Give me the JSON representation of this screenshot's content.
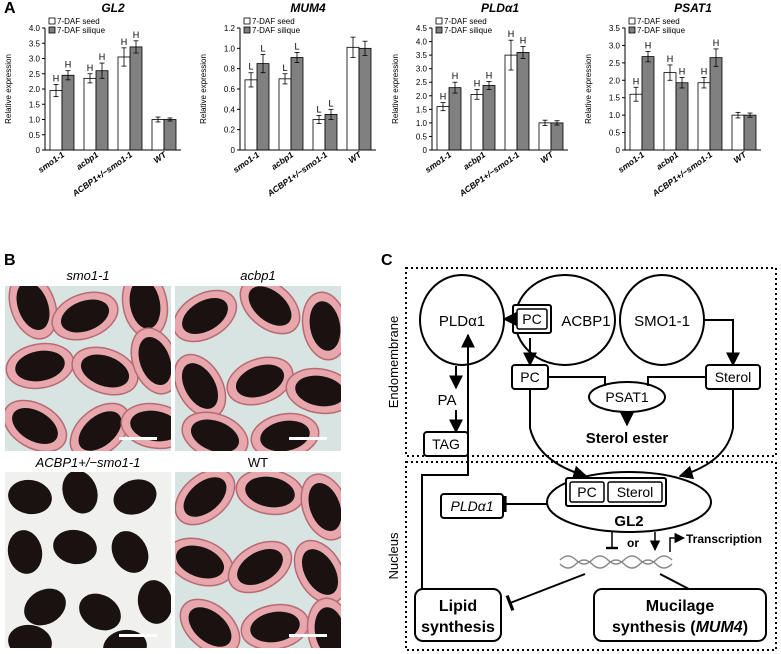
{
  "panels": {
    "a": "A",
    "b": "B",
    "c": "C"
  },
  "legend": {
    "seed": "7-DAF seed",
    "silique": "7-DAF silique"
  },
  "colors": {
    "seed": "#ffffff",
    "silique": "#808080",
    "seed_bg": "#e7a7ad",
    "seed_body": "#1a1210",
    "plate_bg": "#d8e4e2"
  },
  "chart_data": [
    {
      "type": "bar",
      "title": "GL2",
      "ylabel": "Relative expression",
      "categories": [
        "smo1-1",
        "acbp1",
        "ACBP1+/−smo1-1",
        "WT"
      ],
      "ylim": [
        0,
        4.0
      ],
      "yticks": [
        "0",
        "0.5",
        "1.0",
        "1.5",
        "2.0",
        "2.5",
        "3.0",
        "3.5",
        "4.0"
      ],
      "series": [
        {
          "name": "7-DAF seed",
          "values": [
            1.95,
            2.35,
            3.05,
            1.0
          ],
          "errors": [
            0.2,
            0.15,
            0.3,
            0.08
          ],
          "labels": [
            "H",
            "H",
            "H",
            ""
          ]
        },
        {
          "name": "7-DAF silique",
          "values": [
            2.45,
            2.6,
            3.38,
            1.0
          ],
          "errors": [
            0.15,
            0.25,
            0.2,
            0.05
          ],
          "labels": [
            "H",
            "H",
            "H",
            ""
          ]
        }
      ]
    },
    {
      "type": "bar",
      "title": "MUM4",
      "ylabel": "Relative expression",
      "categories": [
        "smo1-1",
        "acbp1",
        "ACBP1+/−smo1-1",
        "WT"
      ],
      "ylim": [
        0,
        1.2
      ],
      "yticks": [
        "0",
        "0.2",
        "0.4",
        "0.6",
        "0.8",
        "1.0",
        "1.2"
      ],
      "series": [
        {
          "name": "7-DAF seed",
          "values": [
            0.69,
            0.7,
            0.3,
            1.01
          ],
          "errors": [
            0.07,
            0.05,
            0.04,
            0.1
          ],
          "labels": [
            "L",
            "L",
            "L",
            ""
          ]
        },
        {
          "name": "7-DAF silique",
          "values": [
            0.85,
            0.91,
            0.35,
            1.0
          ],
          "errors": [
            0.09,
            0.05,
            0.05,
            0.07
          ],
          "labels": [
            "L",
            "L",
            "L",
            ""
          ]
        }
      ]
    },
    {
      "type": "bar",
      "title": "PLDα1",
      "ylabel": "Relative expression",
      "categories": [
        "smo1-1",
        "acbp1",
        "ACBP1+/−smo1-1",
        "WT"
      ],
      "ylim": [
        0,
        4.5
      ],
      "yticks": [
        "0",
        "0.5",
        "1.0",
        "1.5",
        "2.0",
        "2.5",
        "3.0",
        "3.5",
        "4.0",
        "4.5"
      ],
      "series": [
        {
          "name": "7-DAF seed",
          "values": [
            1.6,
            2.05,
            3.5,
            1.0
          ],
          "errors": [
            0.15,
            0.18,
            0.55,
            0.1
          ],
          "labels": [
            "H",
            "H",
            "H",
            ""
          ]
        },
        {
          "name": "7-DAF silique",
          "values": [
            2.3,
            2.38,
            3.6,
            1.0
          ],
          "errors": [
            0.2,
            0.15,
            0.22,
            0.08
          ],
          "labels": [
            "H",
            "H",
            "H",
            ""
          ]
        }
      ]
    },
    {
      "type": "bar",
      "title": "PSAT1",
      "ylabel": "Relative expression",
      "categories": [
        "smo1-1",
        "acbp1",
        "ACBP1+/−smo1-1",
        "WT"
      ],
      "ylim": [
        0,
        3.5
      ],
      "yticks": [
        "0",
        "0.5",
        "1.0",
        "1.5",
        "2.0",
        "2.5",
        "3.0",
        "3.5"
      ],
      "series": [
        {
          "name": "7-DAF seed",
          "values": [
            1.6,
            2.22,
            1.93,
            1.0
          ],
          "errors": [
            0.2,
            0.22,
            0.15,
            0.08
          ],
          "labels": [
            "H",
            "H",
            "H",
            ""
          ]
        },
        {
          "name": "7-DAF silique",
          "values": [
            2.68,
            1.93,
            2.65,
            1.0
          ],
          "errors": [
            0.15,
            0.15,
            0.25,
            0.06
          ],
          "labels": [
            "H",
            "H",
            "H",
            ""
          ]
        }
      ]
    }
  ],
  "photos": {
    "smo1": "smo1-1",
    "acbp1": "acbp1",
    "hetero": "ACBP1+/−smo1-1",
    "wt": "WT"
  },
  "diagram": {
    "compartment_endo": "Endomembrane",
    "compartment_nucleus": "Nucleus",
    "pld": "PLDα1",
    "pc": "PC",
    "acbp1": "ACBP1",
    "smo1": "SMO1-1",
    "pc2": "PC",
    "sterol": "Sterol",
    "psat1": "PSAT1",
    "pa": "PA",
    "tag": "TAG",
    "sterol_ester": "Sterol ester",
    "pld_gene": "PLDα1",
    "pc3": "PC",
    "sterol2": "Sterol",
    "gl2": "GL2",
    "or": "or",
    "transcription": "Transcription",
    "lipid_1": "Lipid",
    "lipid_2": "synthesis",
    "mucilage_1": "Mucilage",
    "mucilage_2a": "synthesis (",
    "mucilage_2b": "MUM4",
    "mucilage_2c": ")"
  }
}
